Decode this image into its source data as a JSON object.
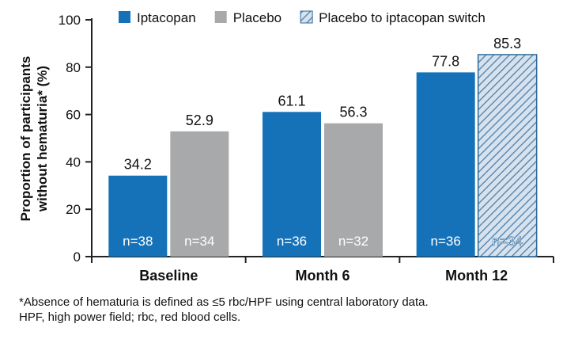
{
  "chart_data": {
    "type": "bar",
    "ylabel_lines": [
      "Proportion of participants",
      "without hematuria* (%)"
    ],
    "xlabel": "",
    "ylim": [
      0,
      100
    ],
    "yticks": [
      0,
      20,
      40,
      60,
      80,
      100
    ],
    "grid": false,
    "legend_position": "top",
    "categories": [
      "Baseline",
      "Month 6",
      "Month 12"
    ],
    "legend": [
      {
        "name": "Iptacopan",
        "color": "#1572b9",
        "pattern": "solid"
      },
      {
        "name": "Placebo",
        "color": "#a7a9ab",
        "pattern": "solid"
      },
      {
        "name": "Placebo to iptacopan switch",
        "color": "#9ab6cf",
        "pattern": "hatched"
      }
    ],
    "groups": [
      {
        "category": "Baseline",
        "bars": [
          {
            "series": "Iptacopan",
            "value": 34.2,
            "n_label": "n=38"
          },
          {
            "series": "Placebo",
            "value": 52.9,
            "n_label": "n=34"
          }
        ]
      },
      {
        "category": "Month 6",
        "bars": [
          {
            "series": "Iptacopan",
            "value": 61.1,
            "n_label": "n=36"
          },
          {
            "series": "Placebo",
            "value": 56.3,
            "n_label": "n=32"
          }
        ]
      },
      {
        "category": "Month 12",
        "bars": [
          {
            "series": "Iptacopan",
            "value": 77.8,
            "n_label": "n=36"
          },
          {
            "series": "Placebo to iptacopan switch",
            "value": 85.3,
            "n_label": "n=34"
          }
        ]
      }
    ]
  },
  "footnote": {
    "line1": "*Absence of hematuria is defined as ≤5 rbc/HPF using central laboratory data.",
    "line2": "HPF, high power field; rbc, red blood cells."
  }
}
